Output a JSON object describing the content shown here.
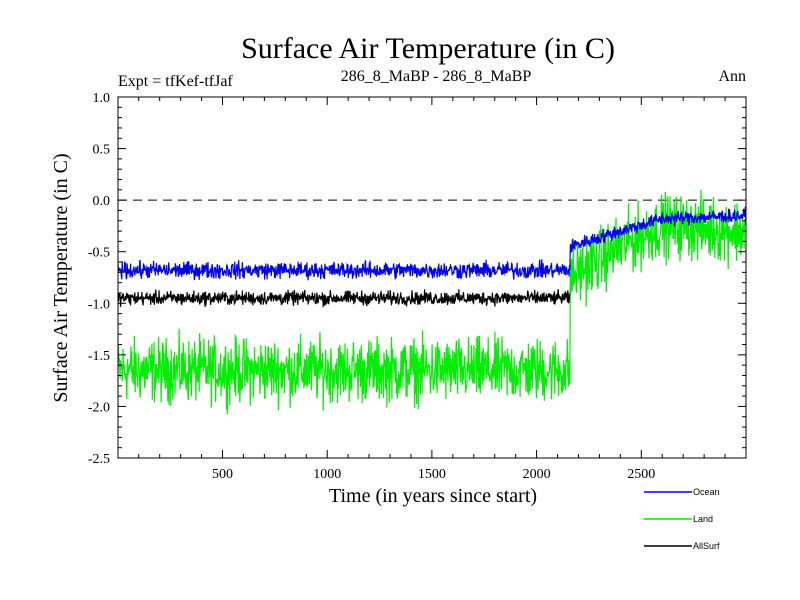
{
  "chart_data": {
    "type": "line",
    "title": "Surface Air Temperature (in C)",
    "header_left": "Expt = tfKef-tfJaf",
    "header_center": "286_8_MaBP - 286_8_MaBP",
    "header_right": "Ann",
    "xlabel": "Time (in years since start)",
    "ylabel": "Surface Air Temperature (in C)",
    "xlim": [
      1,
      3000
    ],
    "ylim": [
      -2.5,
      1.0
    ],
    "x_ticks": [
      500,
      1000,
      1500,
      2000,
      2500
    ],
    "y_ticks": [
      1.0,
      0.5,
      0.0,
      -0.5,
      -1.0,
      -1.5,
      -2.0,
      -2.5
    ],
    "y_tick_labels": [
      "1.0",
      "0.5",
      "0.0",
      "-0.5",
      "-1.0",
      "-1.5",
      "-2.0",
      "-2.5"
    ],
    "zero_reference_line": 0.0,
    "regime_change_year": 2160,
    "legend_position": "bottom-right, below plot",
    "series": [
      {
        "name": "Land",
        "color": "#00ee00",
        "mean_before": -1.65,
        "spread_before": 0.45,
        "segments_after": [
          [
            2160,
            -0.75
          ],
          [
            2400,
            -0.45
          ],
          [
            2600,
            -0.25
          ],
          [
            3000,
            -0.3
          ]
        ],
        "spread_after": 0.45
      },
      {
        "name": "AllSurf",
        "color": "#000000",
        "mean_before": -0.95,
        "spread_before": 0.1,
        "end_year": 2160
      },
      {
        "name": "Ocean",
        "color": "#0000ee",
        "mean_before": -0.68,
        "spread_before": 0.12,
        "segments_after": [
          [
            2160,
            -0.45
          ],
          [
            2400,
            -0.3
          ],
          [
            2600,
            -0.18
          ],
          [
            3000,
            -0.15
          ]
        ],
        "spread_after": 0.1
      }
    ],
    "legend": [
      {
        "label": "Ocean",
        "color": "#0000ee"
      },
      {
        "label": "Land",
        "color": "#00ee00"
      },
      {
        "label": "AllSurf",
        "color": "#000000"
      }
    ]
  }
}
